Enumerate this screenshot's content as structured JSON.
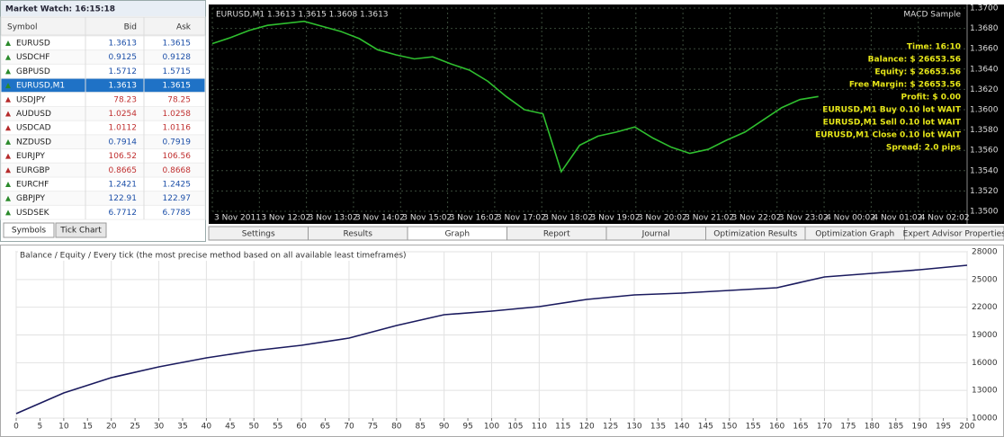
{
  "market_watch": {
    "title": "Market Watch: 16:15:18",
    "headers": [
      "Symbol",
      "Bid",
      "Ask"
    ],
    "selected": 3,
    "rows": [
      {
        "symbol": "EURUSD",
        "bid": "1.3613",
        "ask": "1.3615",
        "dir": "up"
      },
      {
        "symbol": "USDCHF",
        "bid": "0.9125",
        "ask": "0.9128",
        "dir": "up"
      },
      {
        "symbol": "GBPUSD",
        "bid": "1.5712",
        "ask": "1.5715",
        "dir": "up"
      },
      {
        "symbol": "EURUSD,M1",
        "bid": "1.3613",
        "ask": "1.3615",
        "dir": "up"
      },
      {
        "symbol": "USDJPY",
        "bid": "78.23",
        "ask": "78.25",
        "dir": "down"
      },
      {
        "symbol": "AUDUSD",
        "bid": "1.0254",
        "ask": "1.0258",
        "dir": "down"
      },
      {
        "symbol": "USDCAD",
        "bid": "1.0112",
        "ask": "1.0116",
        "dir": "down"
      },
      {
        "symbol": "NZDUSD",
        "bid": "0.7914",
        "ask": "0.7919",
        "dir": "up"
      },
      {
        "symbol": "EURJPY",
        "bid": "106.52",
        "ask": "106.56",
        "dir": "down"
      },
      {
        "symbol": "EURGBP",
        "bid": "0.8665",
        "ask": "0.8668",
        "dir": "down"
      },
      {
        "symbol": "EURCHF",
        "bid": "1.2421",
        "ask": "1.2425",
        "dir": "up"
      },
      {
        "symbol": "GBPJPY",
        "bid": "122.91",
        "ask": "122.97",
        "dir": "up"
      },
      {
        "symbol": "USDSEK",
        "bid": "6.7712",
        "ask": "6.7785",
        "dir": "up"
      }
    ],
    "tabs": [
      "Symbols",
      "Tick Chart"
    ]
  },
  "price_chart": {
    "type": "line",
    "title": "EURUSD,M1  1.3613 1.3615 1.3608 1.3613",
    "expert": "MACD Sample",
    "info": [
      "Time: 16:10",
      "Balance: $ 26653.56",
      "Equity: $ 26653.56",
      "Free Margin: $ 26653.56",
      "Profit: $ 0.00",
      "EURUSD,M1 Buy 0.10 lot  WAIT",
      "EURUSD,M1 Sell 0.10 lot  WAIT",
      "EURUSD,M1 Close 0.10 lot  WAIT",
      "Spread: 2.0 pips"
    ],
    "info_color": "#e6e619",
    "x_labels": [
      "3 Nov 2011",
      "3 Nov 12:02",
      "3 Nov 13:02",
      "3 Nov 14:02",
      "3 Nov 15:02",
      "3 Nov 16:02",
      "3 Nov 17:02",
      "3 Nov 18:02",
      "3 Nov 19:02",
      "3 Nov 20:02",
      "3 Nov 21:02",
      "3 Nov 22:02",
      "3 Nov 23:02",
      "4 Nov 00:02",
      "4 Nov 01:02",
      "4 Nov 02:02"
    ],
    "series": [
      {
        "name": "EURUSD",
        "color": "#2fbf2f",
        "values": [
          1.3665,
          1.3671,
          1.3678,
          1.3683,
          1.3685,
          1.3687,
          1.3682,
          1.3677,
          1.367,
          1.3659,
          1.3654,
          1.365,
          1.3652,
          1.3645,
          1.3639,
          1.3628,
          1.3613,
          1.36,
          1.3596,
          1.3539,
          1.3565,
          1.3574,
          1.3578,
          1.3583,
          1.3572,
          1.3563,
          1.3557,
          1.3561,
          1.357,
          1.3578,
          1.359,
          1.3602,
          1.361,
          1.3613
        ]
      }
    ],
    "xlim": [
      0,
      41
    ],
    "ylim": [
      1.35,
      1.37
    ],
    "yticks": [
      {
        "value": 1.35,
        "label": "1.3500"
      },
      {
        "value": 1.352,
        "label": "1.3520"
      },
      {
        "value": 1.354,
        "label": "1.3540"
      },
      {
        "value": 1.356,
        "label": "1.3560"
      },
      {
        "value": 1.358,
        "label": "1.3580"
      },
      {
        "value": 1.36,
        "label": "1.3600"
      },
      {
        "value": 1.362,
        "label": "1.3620"
      },
      {
        "value": 1.364,
        "label": "1.3640"
      },
      {
        "value": 1.366,
        "label": "1.3660"
      },
      {
        "value": 1.368,
        "label": "1.3680"
      },
      {
        "value": 1.37,
        "label": "1.3700"
      }
    ],
    "grid": true
  },
  "tester_tabs": [
    "Settings",
    "Results",
    "Graph",
    "Report",
    "Journal",
    "Optimization Results",
    "Optimization Graph",
    "Expert Advisor Properties"
  ],
  "tester_graph": {
    "type": "line",
    "title": "Balance / Equity / Every tick (the most precise method based on all available least timeframes)",
    "series": [
      {
        "name": "Balance",
        "color": "#1a1a5e",
        "values": [
          10487,
          12724,
          14379,
          15546,
          16519,
          17297,
          17881,
          18660,
          20022,
          21190,
          21579,
          22065,
          22844,
          23330,
          23525,
          23817,
          24108,
          25276,
          25665,
          26054,
          26541
        ]
      }
    ],
    "x": [
      0,
      10,
      20,
      30,
      40,
      50,
      60,
      70,
      80,
      90,
      100,
      110,
      120,
      130,
      140,
      150,
      160,
      170,
      180,
      190,
      200
    ],
    "xlim": [
      0,
      200
    ],
    "xticks": [
      0,
      5,
      10,
      15,
      20,
      25,
      30,
      35,
      40,
      45,
      50,
      55,
      60,
      65,
      70,
      75,
      80,
      85,
      90,
      95,
      100,
      105,
      110,
      115,
      120,
      125,
      130,
      135,
      140,
      145,
      150,
      155,
      160,
      165,
      170,
      175,
      180,
      185,
      190,
      195,
      200
    ],
    "ylim": [
      10000,
      28000
    ],
    "yticks": [
      10000,
      13000,
      16000,
      19000,
      22000,
      25000,
      28000
    ],
    "grid": true
  }
}
